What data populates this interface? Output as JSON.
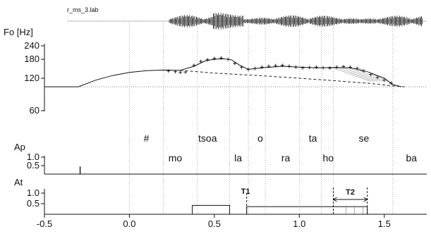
{
  "chart_data": {
    "type": "line",
    "file_label": "r_ms_3.lab",
    "x_axis": {
      "range": [
        -0.5,
        1.75
      ],
      "ticks": [
        {
          "v": -0.5,
          "label": "-0.5"
        },
        {
          "v": 0.0,
          "label": "0.0"
        },
        {
          "v": 0.5,
          "label": "0.5"
        },
        {
          "v": 1.0,
          "label": "1.0"
        },
        {
          "v": 1.5,
          "label": "1.5"
        }
      ]
    },
    "fo_panel": {
      "title": "Fo [Hz]",
      "y_ticks": [
        {
          "v": 240,
          "label": "240"
        },
        {
          "v": 180,
          "label": "180"
        },
        {
          "v": 120,
          "label": "120"
        },
        {
          "v": 60,
          "label": "60"
        }
      ],
      "baseline_hz": 100,
      "model_contour": [
        [
          -0.5,
          100
        ],
        [
          -0.3,
          100
        ],
        [
          -0.2,
          115
        ],
        [
          -0.1,
          127
        ],
        [
          0.0,
          136
        ],
        [
          0.1,
          141
        ],
        [
          0.2,
          143
        ],
        [
          0.3,
          142
        ],
        [
          0.38,
          155
        ],
        [
          0.45,
          175
        ],
        [
          0.5,
          180
        ],
        [
          0.55,
          182
        ],
        [
          0.6,
          178
        ],
        [
          0.65,
          158
        ],
        [
          0.7,
          145
        ],
        [
          0.8,
          151
        ],
        [
          0.9,
          155
        ],
        [
          1.0,
          152
        ],
        [
          1.1,
          150
        ],
        [
          1.2,
          151
        ],
        [
          1.3,
          150
        ],
        [
          1.4,
          138
        ],
        [
          1.5,
          120
        ],
        [
          1.55,
          105
        ],
        [
          1.6,
          100
        ]
      ],
      "observed_f0": [
        [
          0.23,
          140
        ],
        [
          0.27,
          138
        ],
        [
          0.3,
          136
        ],
        [
          0.33,
          137
        ],
        [
          0.38,
          158
        ],
        [
          0.42,
          172
        ],
        [
          0.46,
          178
        ],
        [
          0.5,
          183
        ],
        [
          0.54,
          185
        ],
        [
          0.58,
          180
        ],
        [
          0.62,
          165
        ],
        [
          0.66,
          152
        ],
        [
          0.7,
          145
        ],
        [
          0.74,
          148
        ],
        [
          0.78,
          152
        ],
        [
          0.82,
          155
        ],
        [
          0.86,
          157
        ],
        [
          0.9,
          158
        ],
        [
          0.94,
          155
        ],
        [
          0.98,
          152
        ],
        [
          1.02,
          150
        ],
        [
          1.06,
          151
        ],
        [
          1.1,
          152
        ],
        [
          1.14,
          150
        ],
        [
          1.18,
          149
        ],
        [
          1.22,
          152
        ],
        [
          1.26,
          154
        ],
        [
          1.3,
          152
        ],
        [
          1.34,
          148
        ],
        [
          1.38,
          140
        ],
        [
          1.42,
          130
        ],
        [
          1.46,
          122
        ],
        [
          1.5,
          115
        ],
        [
          1.54,
          108
        ]
      ],
      "phrase_component": [
        [
          0.3,
          142
        ],
        [
          0.5,
          134
        ],
        [
          0.8,
          126
        ],
        [
          1.0,
          120
        ],
        [
          1.2,
          114
        ],
        [
          1.4,
          108
        ],
        [
          1.55,
          102
        ],
        [
          1.62,
          100
        ]
      ]
    },
    "segments": {
      "upper": [
        {
          "label": "#",
          "x": 0.1
        },
        {
          "label": "tsoa",
          "x": 0.46
        },
        {
          "label": "o",
          "x": 0.77
        },
        {
          "label": "ta",
          "x": 1.08
        },
        {
          "label": "se",
          "x": 1.38
        }
      ],
      "lower": [
        {
          "label": "mo",
          "x": 0.27
        },
        {
          "label": "la",
          "x": 0.64
        },
        {
          "label": "ra",
          "x": 0.92
        },
        {
          "label": "ho",
          "x": 1.17
        },
        {
          "label": "ba",
          "x": 1.66
        }
      ],
      "boundaries": [
        0.0,
        0.2,
        0.4,
        0.59,
        0.7,
        0.8,
        1.0,
        1.13,
        1.2,
        1.55
      ]
    },
    "ap_panel": {
      "title": "Ap",
      "y_ticks": [
        {
          "v": 1.0,
          "label": "1.0"
        },
        {
          "v": 0.5,
          "label": "0.5"
        }
      ],
      "impulses": [
        {
          "x": -0.29,
          "value": 0.45
        }
      ]
    },
    "at_panel": {
      "title": "At",
      "y_ticks": [
        {
          "v": 1.0,
          "label": "1.0"
        },
        {
          "v": 0.5,
          "label": "0.5"
        }
      ],
      "accent_commands": [
        {
          "onset": 0.37,
          "offset": 0.59,
          "value": 0.42
        },
        {
          "onset": 0.69,
          "offset": 1.4,
          "value": 0.36
        }
      ],
      "markers": [
        {
          "label": "T1",
          "x": 0.69
        },
        {
          "label": "T2",
          "x": 1.2,
          "x2": 1.4
        }
      ]
    }
  }
}
